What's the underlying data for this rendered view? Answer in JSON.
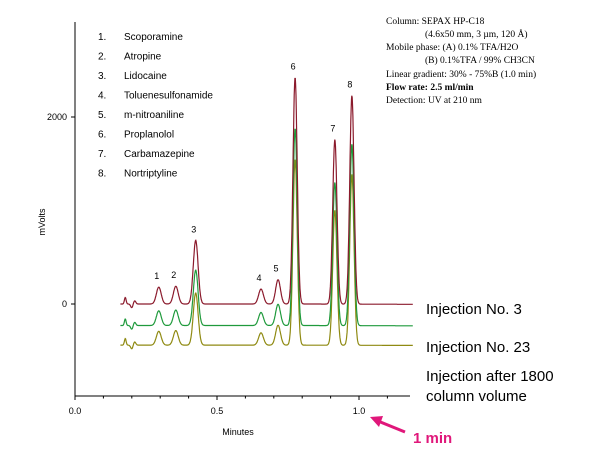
{
  "chart_data": {
    "type": "line",
    "xlabel": "Minutes",
    "ylabel": "mVolts",
    "xlim": [
      0,
      1.1
    ],
    "ylim": [
      -420,
      3100
    ],
    "x_ticks": [
      "0.0",
      "0.5",
      "1.0"
    ],
    "x_tick_values": [
      0,
      0.5,
      1.0
    ],
    "y_ticks": [
      "0",
      "2000"
    ],
    "y_tick_values": [
      0,
      2000
    ],
    "grid": false,
    "series": [
      {
        "name": "Injection No. 3",
        "color": "#8b1a2c",
        "offset": 0
      },
      {
        "name": "Injection No. 23",
        "color": "#1f9a3c",
        "offset": -230
      },
      {
        "name": "Injection after 1800 column volume",
        "color": "#8f8a12",
        "offset": -440
      }
    ],
    "peaks": [
      {
        "label": "1",
        "compound": "Scoporamine",
        "rt": 0.295,
        "height": 180
      },
      {
        "label": "2",
        "compound": "Atropine",
        "rt": 0.355,
        "height": 190
      },
      {
        "label": "3",
        "compound": "Lidocaine",
        "rt": 0.425,
        "height": 680
      },
      {
        "label": "4",
        "compound": "Toluenesulfonamide",
        "rt": 0.655,
        "height": 160
      },
      {
        "label": "5",
        "compound": "m-nitroaniline",
        "rt": 0.715,
        "height": 260
      },
      {
        "label": "6",
        "compound": "Proplanolol",
        "rt": 0.775,
        "height": 2420
      },
      {
        "label": "7",
        "compound": "Carbamazepine",
        "rt": 0.915,
        "height": 1760
      },
      {
        "label": "8",
        "compound": "Nortriptyline",
        "rt": 0.975,
        "height": 2230
      }
    ],
    "conditions": [
      "Column: SEPAX HP-C18",
      "(4.6x50 mm, 3 µm, 120 Å)",
      "Mobile phase: (A) 0.1% TFA/H2O",
      "(B) 0.1%TFA / 99% CH3CN",
      "Linear gradient: 30% - 75%B (1.0 min)",
      "Flow rate: 2.5 ml/min",
      "Detection: UV at 210 nm"
    ],
    "scale_annotation": "1 min",
    "scale_annotation_color": "#e0177a"
  }
}
